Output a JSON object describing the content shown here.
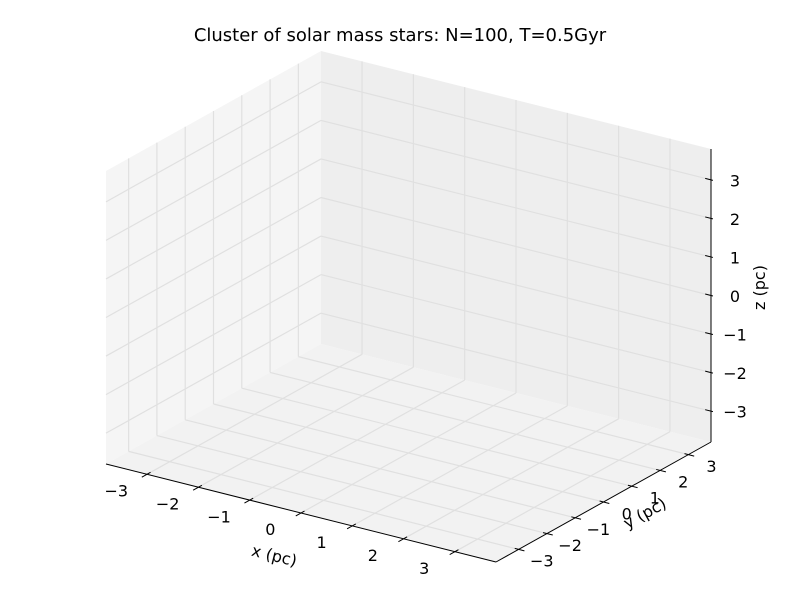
{
  "chart_data": {
    "type": "scatter",
    "projection": "3d",
    "title": "Cluster of solar mass stars: N=100, T=0.5Gyr",
    "xlabel": "x (pc)",
    "ylabel": "y (pc)",
    "zlabel": "z (pc)",
    "xlim": [
      -3.8,
      3.8
    ],
    "ylim": [
      -3.8,
      3.8
    ],
    "zlim": [
      -3.8,
      3.8
    ],
    "xticks": [
      -3,
      -2,
      -1,
      0,
      1,
      2,
      3
    ],
    "yticks": [
      -3,
      -2,
      -1,
      0,
      1,
      2,
      3
    ],
    "zticks": [
      -3,
      -2,
      -1,
      0,
      1,
      2,
      3
    ],
    "xtick_labels": [
      "−3",
      "−2",
      "−1",
      "0",
      "1",
      "2",
      "3"
    ],
    "ytick_labels": [
      "−3",
      "−2",
      "−1",
      "0",
      "1",
      "2",
      "3"
    ],
    "ztick_labels": [
      "−3",
      "−2",
      "−1",
      "0",
      "1",
      "2",
      "3"
    ],
    "grid": true,
    "points": [],
    "pane_colors": {
      "left_wall": "#f5f5f5",
      "back_wall": "#eeeeee",
      "floor": "#f2f2f2",
      "grid": "#e0e0e0",
      "axis_line": "#000000"
    }
  }
}
